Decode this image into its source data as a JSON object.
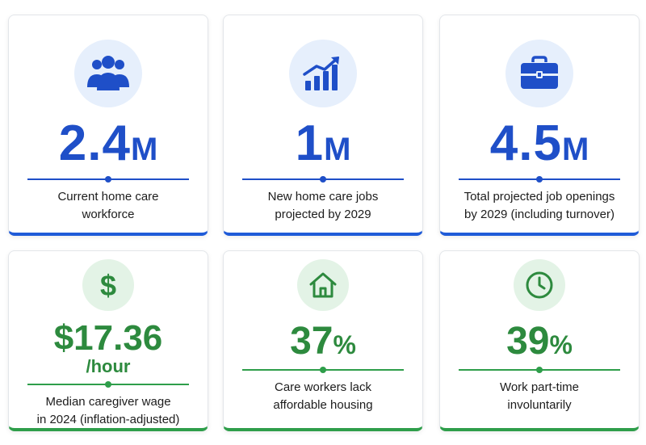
{
  "cards": [
    {
      "icon": "people-icon",
      "stat": "2.4",
      "unit": "M",
      "desc1": "Current home care",
      "desc2": "workforce",
      "color": "#1f4fc8"
    },
    {
      "icon": "growth-chart-icon",
      "stat": "1",
      "unit": "M",
      "desc1": "New home care jobs",
      "desc2": "projected by 2029",
      "color": "#1f4fc8"
    },
    {
      "icon": "briefcase-icon",
      "stat": "4.5",
      "unit": "M",
      "desc1": "Total projected job openings",
      "desc2": "by 2029 (including turnover)",
      "color": "#1f4fc8"
    },
    {
      "icon": "dollar-icon",
      "stat": "$17.36",
      "per": "/hour",
      "desc1": "Median caregiver wage",
      "desc2": "in 2024 (inflation-adjusted)",
      "color": "#2d8a3e"
    },
    {
      "icon": "house-icon",
      "stat": "37",
      "unit": "%",
      "desc1": "Care workers lack",
      "desc2": "affordable housing",
      "color": "#2d8a3e"
    },
    {
      "icon": "clock-icon",
      "stat": "39",
      "unit": "%",
      "desc1": "Work part-time",
      "desc2": "involuntarily",
      "color": "#2d8a3e"
    }
  ]
}
